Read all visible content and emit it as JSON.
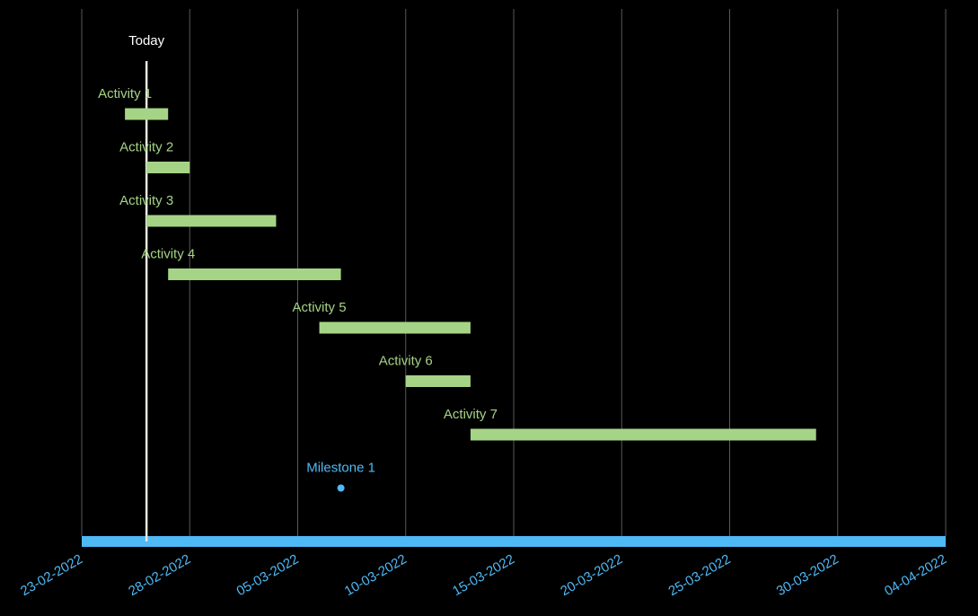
{
  "chart_data": {
    "type": "gantt",
    "xlim": [
      "2022-02-23",
      "2022-04-04"
    ],
    "xticks": [
      {
        "value": "2022-02-23",
        "label": "23-02-2022"
      },
      {
        "value": "2022-02-28",
        "label": "28-02-2022"
      },
      {
        "value": "2022-03-05",
        "label": "05-03-2022"
      },
      {
        "value": "2022-03-10",
        "label": "10-03-2022"
      },
      {
        "value": "2022-03-15",
        "label": "15-03-2022"
      },
      {
        "value": "2022-03-20",
        "label": "20-03-2022"
      },
      {
        "value": "2022-03-25",
        "label": "25-03-2022"
      },
      {
        "value": "2022-03-30",
        "label": "30-03-2022"
      },
      {
        "value": "2022-04-04",
        "label": "04-04-2022"
      }
    ],
    "grid": true,
    "today": {
      "label": "Today",
      "date": "2022-02-26"
    },
    "bar_color": "#a6d486",
    "milestone_color": "#4fb9f5",
    "tasks": [
      {
        "name": "Activity 1",
        "start": "2022-02-25",
        "end": "2022-02-27"
      },
      {
        "name": "Activity 2",
        "start": "2022-02-26",
        "end": "2022-02-28"
      },
      {
        "name": "Activity 3",
        "start": "2022-02-26",
        "end": "2022-03-04"
      },
      {
        "name": "Activity 4",
        "start": "2022-02-27",
        "end": "2022-03-07"
      },
      {
        "name": "Activity 5",
        "start": "2022-03-06",
        "end": "2022-03-13"
      },
      {
        "name": "Activity 6",
        "start": "2022-03-10",
        "end": "2022-03-13"
      },
      {
        "name": "Activity 7",
        "start": "2022-03-13",
        "end": "2022-03-29"
      }
    ],
    "milestones": [
      {
        "name": "Milestone 1",
        "date": "2022-03-07"
      }
    ]
  }
}
